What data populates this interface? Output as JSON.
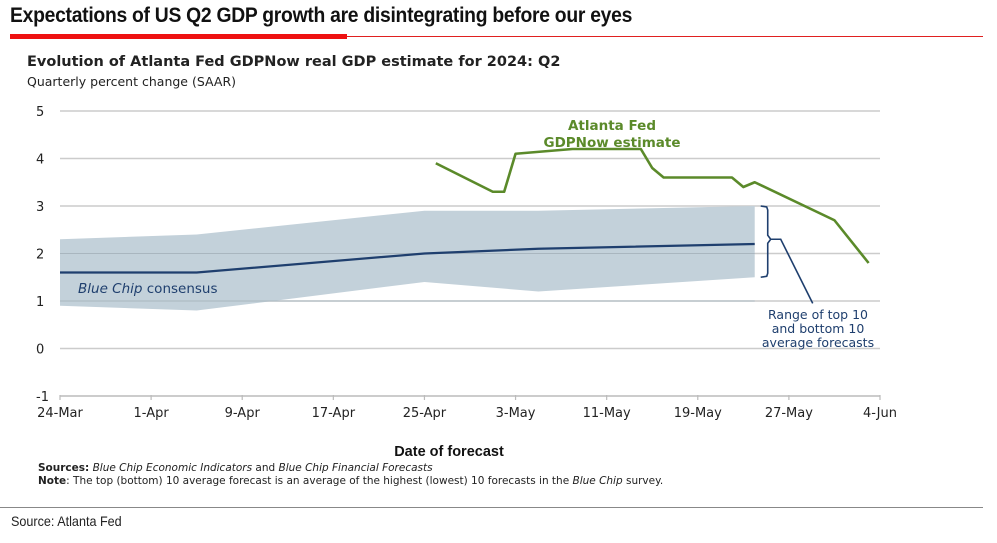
{
  "headline": "Expectations of US Q2 GDP growth are disintegrating before our eyes",
  "source_footer": "Source: Atlanta Fed",
  "notes": {
    "sources_label": "Sources:",
    "sources_text_1": "Blue Chip Economic Indicators",
    "sources_and": " and ",
    "sources_text_2": "Blue Chip Financial Forecasts",
    "note_label": "Note",
    "note_text": ": The top (bottom) 10 average forecast is an average of the highest (lowest) 10 forecasts in the ",
    "note_italic": "Blue Chip",
    "note_end": " survey."
  },
  "colors": {
    "headline_rule": "#ee1111",
    "gdpnow": "#5b8a2a",
    "consensus": "#1f3f6e",
    "range_band": "#c3d1da",
    "gridline": "#cccccc"
  },
  "chart_data": {
    "type": "line",
    "title": "Evolution of Atlanta Fed GDPNow real GDP estimate for 2024: Q2",
    "subtitle": "Quarterly percent change (SAAR)",
    "xlabel": "Date of forecast",
    "ylabel": "",
    "ylim": [
      -1,
      5
    ],
    "yticks": [
      5,
      4,
      3,
      2,
      1,
      0,
      -1
    ],
    "xlim_days": [
      0,
      72
    ],
    "x_origin": "24-Mar",
    "xticks": [
      {
        "label": "24-Mar",
        "day": 0
      },
      {
        "label": "1-Apr",
        "day": 8
      },
      {
        "label": "9-Apr",
        "day": 16
      },
      {
        "label": "17-Apr",
        "day": 24
      },
      {
        "label": "25-Apr",
        "day": 32
      },
      {
        "label": "3-May",
        "day": 40
      },
      {
        "label": "11-May",
        "day": 48
      },
      {
        "label": "19-May",
        "day": 56
      },
      {
        "label": "27-May",
        "day": 64
      },
      {
        "label": "4-Jun",
        "day": 72
      }
    ],
    "grid": true,
    "series": [
      {
        "name": "Atlanta Fed GDPNow estimate",
        "label_lines": [
          "Atlanta Fed",
          "GDPNow estimate"
        ],
        "points": [
          {
            "day": 33,
            "value": 3.9
          },
          {
            "day": 38,
            "value": 3.3
          },
          {
            "day": 39,
            "value": 3.3
          },
          {
            "day": 40,
            "value": 4.1
          },
          {
            "day": 45,
            "value": 4.2
          },
          {
            "day": 51,
            "value": 4.2
          },
          {
            "day": 52,
            "value": 3.8
          },
          {
            "day": 53,
            "value": 3.6
          },
          {
            "day": 59,
            "value": 3.6
          },
          {
            "day": 60,
            "value": 3.4
          },
          {
            "day": 61,
            "value": 3.5
          },
          {
            "day": 68,
            "value": 2.7
          },
          {
            "day": 71,
            "value": 1.8
          }
        ]
      },
      {
        "name": "Blue Chip consensus",
        "label_italic": "Blue Chip",
        "label_rest": " consensus",
        "points": [
          {
            "day": 0,
            "value": 1.6
          },
          {
            "day": 12,
            "value": 1.6
          },
          {
            "day": 32,
            "value": 2.0
          },
          {
            "day": 42,
            "value": 2.1
          },
          {
            "day": 61,
            "value": 2.2
          }
        ]
      }
    ],
    "range_band": {
      "name": "Range of top 10 and bottom 10 average forecasts",
      "label_lines": [
        "Range of top 10",
        "and bottom 10",
        "average forecasts"
      ],
      "upper": [
        {
          "day": 0,
          "value": 2.3
        },
        {
          "day": 12,
          "value": 2.4
        },
        {
          "day": 32,
          "value": 2.9
        },
        {
          "day": 42,
          "value": 2.9
        },
        {
          "day": 61,
          "value": 3.0
        }
      ],
      "lower": [
        {
          "day": 0,
          "value": 0.9
        },
        {
          "day": 12,
          "value": 0.8
        },
        {
          "day": 32,
          "value": 1.4
        },
        {
          "day": 42,
          "value": 1.2
        },
        {
          "day": 61,
          "value": 1.5
        }
      ]
    }
  }
}
